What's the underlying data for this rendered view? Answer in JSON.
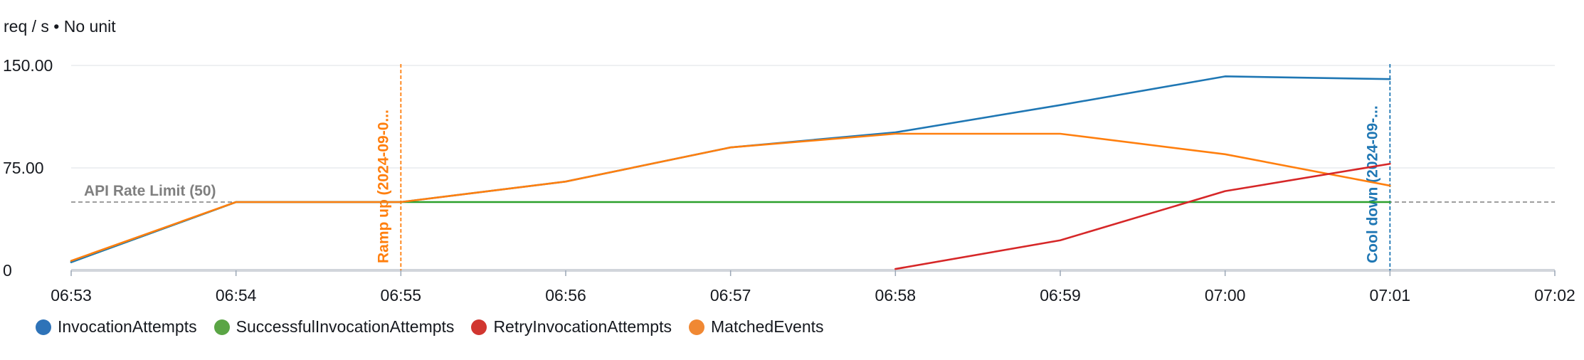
{
  "chart_data": {
    "type": "line",
    "unit_label": "req / s • No unit",
    "x": [
      "06:53",
      "06:54",
      "06:55",
      "06:56",
      "06:57",
      "06:58",
      "06:59",
      "07:00",
      "07:01",
      "07:02"
    ],
    "x_ticks": [
      "06:53",
      "06:54",
      "06:55",
      "06:56",
      "06:57",
      "06:58",
      "06:59",
      "07:00",
      "07:01",
      "07:02"
    ],
    "y_ticks": [
      {
        "value": 0,
        "label": "0"
      },
      {
        "value": 75,
        "label": "75.00"
      },
      {
        "value": 150,
        "label": "150.00"
      }
    ],
    "ylim": [
      0,
      150
    ],
    "grid": true,
    "legend_position": "bottom-left",
    "series": [
      {
        "name": "InvocationAttempts",
        "color": "#1f77b4",
        "legend_color": "#2e73b8",
        "points": [
          [
            "06:53",
            6
          ],
          [
            "06:54",
            50
          ],
          [
            "06:55",
            50
          ],
          [
            "06:56",
            65
          ],
          [
            "06:57",
            90
          ],
          [
            "06:58",
            101
          ],
          [
            "06:59",
            121
          ],
          [
            "07:00",
            142
          ],
          [
            "07:01",
            140
          ]
        ]
      },
      {
        "name": "SuccessfulInvocationAttempts",
        "color": "#2ca02c",
        "legend_color": "#5aa545",
        "points": [
          [
            "06:53",
            6
          ],
          [
            "06:54",
            50
          ],
          [
            "06:55",
            50
          ],
          [
            "06:56",
            50
          ],
          [
            "06:57",
            50
          ],
          [
            "06:58",
            50
          ],
          [
            "06:59",
            50
          ],
          [
            "07:00",
            50
          ],
          [
            "07:01",
            50
          ]
        ]
      },
      {
        "name": "RetryInvocationAttempts",
        "color": "#d62728",
        "legend_color": "#d13630",
        "points": [
          [
            "06:58",
            1
          ],
          [
            "06:59",
            22
          ],
          [
            "07:00",
            58
          ],
          [
            "07:01",
            78
          ]
        ]
      },
      {
        "name": "MatchedEvents",
        "color": "#ff7f0e",
        "legend_color": "#f08833",
        "points": [
          [
            "06:53",
            7
          ],
          [
            "06:54",
            50
          ],
          [
            "06:55",
            50
          ],
          [
            "06:56",
            65
          ],
          [
            "06:57",
            90
          ],
          [
            "06:58",
            100
          ],
          [
            "06:59",
            100
          ],
          [
            "07:00",
            85
          ],
          [
            "07:01",
            62
          ]
        ]
      }
    ],
    "annotations": [
      {
        "type": "horizontal",
        "value": 50,
        "label": "API Rate Limit (50)",
        "color": "#7f7f7f"
      },
      {
        "type": "vertical",
        "x": "06:55",
        "label": "Ramp up (2024-09-0...",
        "color": "#ff7f0e"
      },
      {
        "type": "vertical",
        "x": "07:01",
        "label": "Cool down (2024-09-...",
        "color": "#1f77b4"
      }
    ]
  }
}
